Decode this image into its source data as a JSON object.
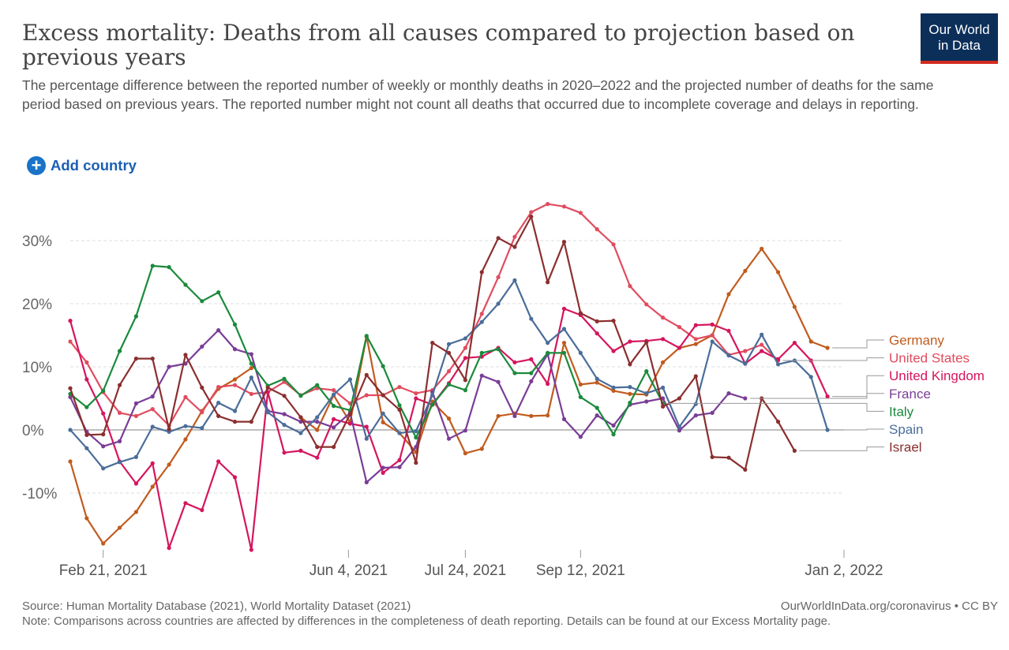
{
  "header": {
    "title": "Excess mortality: Deaths from all causes compared to projection based on previous years",
    "subtitle": "The percentage difference between the reported number of weekly or monthly deaths in 2020–2022 and the projected number of deaths for the same period based on previous years. The reported number might not count all deaths that occurred due to incomplete coverage and delays in reporting.",
    "logo_line1": "Our World",
    "logo_line2": "in Data"
  },
  "controls": {
    "add_country_label": "Add country",
    "add_icon": "plus-circle-icon"
  },
  "footer": {
    "source": "Source: Human Mortality Database (2021), World Mortality Dataset (2021)",
    "credit": "OurWorldInData.org/coronavirus • CC BY",
    "note": "Note: Comparisons across countries are affected by differences in the completeness of death reporting. Details can be found at our Excess Mortality page."
  },
  "colors": {
    "background": "#ffffff",
    "grid": "#dddddd",
    "zero_line": "#999999",
    "brand_navy": "#0c2f5a",
    "brand_red": "#d42b21"
  },
  "chart_data": {
    "type": "line",
    "title": "Excess mortality: Deaths from all causes compared to projection based on previous years",
    "x_axis": {
      "type": "date",
      "start": "2021-02-07",
      "step_days": 7,
      "ticks": [
        "Feb 21, 2021",
        "Jun 4, 2021",
        "Jul 24, 2021",
        "Sep 12, 2021",
        "Jan 2, 2022"
      ],
      "tick_index": [
        2,
        16.9,
        24,
        31,
        47
      ]
    },
    "y_axis": {
      "ylim": [
        -20,
        35
      ],
      "ticks": [
        -10,
        0,
        10,
        20,
        30
      ],
      "tick_labels": [
        "-10%",
        "0%",
        "10%",
        "20%",
        "30%"
      ],
      "unit": "%",
      "zero_line": true
    },
    "grid": true,
    "legend_placement": "right, labels at line ends",
    "series": [
      {
        "name": "Germany",
        "color": "#c15b1e",
        "values": [
          -5,
          -14,
          -18,
          -15.5,
          -13,
          -9,
          -5.5,
          -1.5,
          3,
          6.5,
          8,
          9.8,
          null,
          null,
          2,
          0,
          5.5,
          1.2,
          14.8,
          1.2,
          -0.5,
          -3.5,
          4.5,
          1.8,
          -3.7,
          -3,
          2.2,
          2.6,
          2.2,
          2.3,
          13.8,
          7.2,
          7.5,
          6.2,
          5.7,
          5.6,
          10.7,
          13,
          13.6,
          15,
          21.5,
          25.2,
          28.7,
          25,
          19.5,
          14,
          13
        ]
      },
      {
        "name": "United States",
        "color": "#e04c5f",
        "values": [
          14,
          10.7,
          6,
          2.7,
          2.2,
          3.3,
          0.7,
          5.2,
          2.8,
          6.8,
          7.1,
          5.7,
          6,
          7.6,
          5.5,
          6.6,
          6.3,
          4.2,
          5.5,
          5.5,
          6.8,
          5.8,
          6.3,
          9.3,
          13,
          18.4,
          24.2,
          30.6,
          34.5,
          35.8,
          35.4,
          34.4,
          31.8,
          29.4,
          22.8,
          19.9,
          17.8,
          16.3,
          14.4,
          15,
          11.9,
          12.5,
          13.5,
          11
        ]
      },
      {
        "name": "United Kingdom",
        "color": "#d6155d",
        "values": [
          17.3,
          8,
          2.6,
          -5,
          -8.5,
          -5.3,
          -18.7,
          -11.6,
          -12.7,
          -5,
          -7.5,
          -19,
          6,
          -3.6,
          -3.3,
          -4.4,
          1.7,
          1,
          0.5,
          -6.8,
          -4.8,
          5,
          4,
          7.4,
          11.4,
          11.6,
          13,
          10.7,
          11.2,
          7.3,
          19.2,
          18.2,
          15.3,
          12.5,
          14,
          14.1,
          14.4,
          13,
          16.6,
          16.7,
          15.7,
          10.5,
          12.5,
          11.2,
          13.8,
          11,
          5.3
        ]
      },
      {
        "name": "France",
        "color": "#7a3d96",
        "values": [
          5.2,
          -0.3,
          -2.6,
          -1.8,
          4.2,
          5.3,
          10,
          10.5,
          13.2,
          15.8,
          12.8,
          12,
          3,
          2.5,
          1.3,
          1.3,
          0.4,
          2.7,
          -8.3,
          -6,
          -5.9,
          -2.7,
          6,
          -1.4,
          -0.1,
          8.6,
          7.6,
          2.2,
          7.7,
          12,
          1.7,
          -1.1,
          2.3,
          0.7,
          4,
          4.5,
          5,
          -0.1,
          2.3,
          2.7,
          5.8,
          5
        ]
      },
      {
        "name": "Italy",
        "color": "#1a8a3c",
        "values": [
          5.7,
          3.6,
          6.2,
          12.5,
          18,
          26,
          25.8,
          23,
          20.4,
          21.8,
          16.7,
          10.5,
          7,
          8.1,
          5.4,
          7.1,
          3.8,
          3.1,
          14.9,
          10.1,
          3.9,
          -1.2,
          4,
          7.2,
          6.3,
          12.2,
          12.8,
          9,
          9,
          12.2,
          12.2,
          5.2,
          3.5,
          -0.7,
          4.3,
          9.3,
          4.2
        ]
      },
      {
        "name": "Spain",
        "color": "#4a6d99",
        "values": [
          0,
          -2.9,
          -6.1,
          -5.1,
          -4.3,
          0.5,
          -0.3,
          0.6,
          0.3,
          4.3,
          3,
          8.3,
          2.8,
          0.8,
          -0.5,
          2,
          5.6,
          8,
          -1.4,
          2.6,
          -0.5,
          -0.2,
          5.5,
          13.6,
          14.5,
          17.1,
          20,
          23.7,
          17.6,
          13.8,
          16,
          12.2,
          8.1,
          6.7,
          6.8,
          5.8,
          6.7,
          0.5,
          4.1,
          14,
          11.8,
          10.5,
          15.1,
          10.4,
          11,
          8.4,
          0
        ]
      },
      {
        "name": "Israel",
        "color": "#8b2f2f",
        "values": [
          6.6,
          -0.8,
          -0.7,
          7.1,
          11.3,
          11.3,
          0.1,
          11.9,
          6.7,
          2.2,
          1.3,
          1.3,
          6.7,
          5.4,
          2,
          -2.7,
          -2.7,
          2.5,
          8.7,
          5.5,
          3.2,
          -5.2,
          13.8,
          12.2,
          7.9,
          25,
          30.4,
          29,
          33.8,
          23.4,
          29.8,
          18.5,
          17.2,
          17.3,
          10.4,
          13.9,
          3.7,
          5,
          8.5,
          -4.3,
          -4.4,
          -6.3,
          5,
          1.3,
          -3.3
        ]
      }
    ]
  }
}
